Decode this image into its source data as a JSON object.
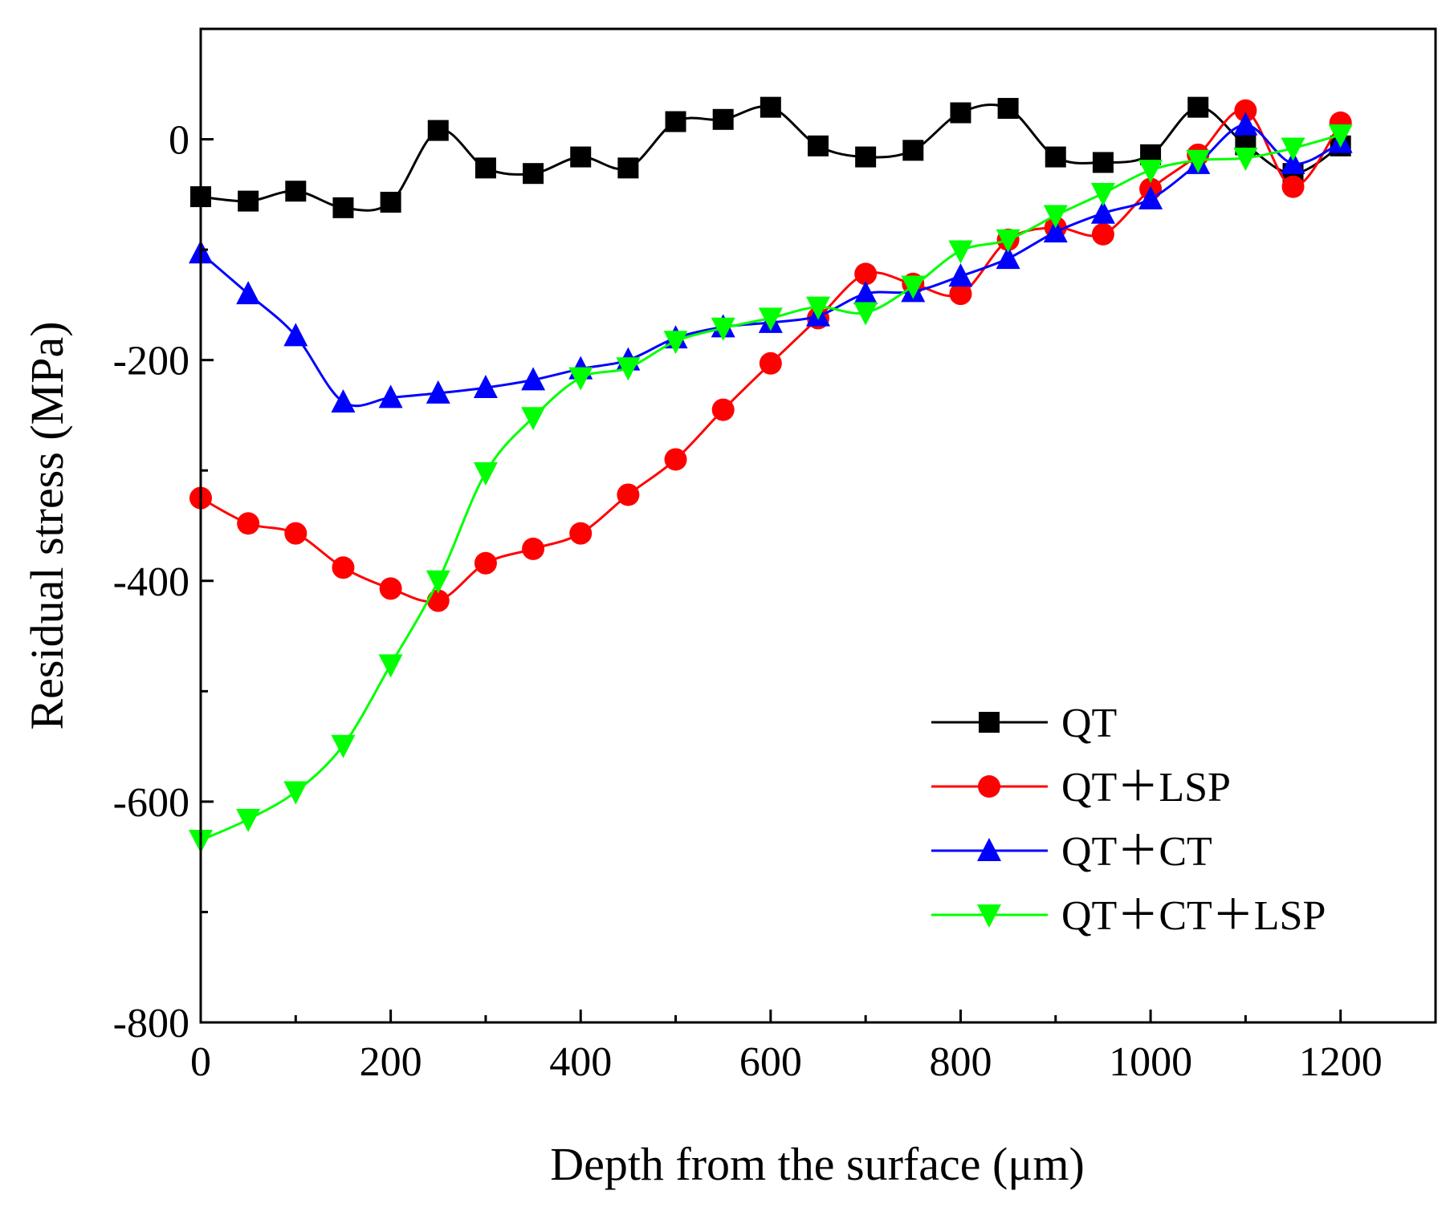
{
  "chart_data": {
    "type": "line",
    "title": "",
    "xlabel": "Depth from the surface (μm)",
    "ylabel": "Residual stress (MPa)",
    "xlim": [
      0,
      1300
    ],
    "ylim": [
      -800,
      100
    ],
    "xticks": [
      0,
      200,
      400,
      600,
      800,
      1000,
      1200
    ],
    "yticks": [
      -800,
      -600,
      -400,
      -200,
      0
    ],
    "xtick_labels": [
      "0",
      "200",
      "400",
      "600",
      "800",
      "1000",
      "1200"
    ],
    "ytick_labels": [
      "-800",
      "-600",
      "-400",
      "-200",
      "0"
    ],
    "grid": false,
    "legend_position": "bottom-right",
    "x": [
      0,
      50,
      100,
      150,
      200,
      250,
      300,
      350,
      400,
      450,
      500,
      550,
      600,
      650,
      700,
      750,
      800,
      850,
      900,
      950,
      1000,
      1050,
      1100,
      1150,
      1200
    ],
    "series": [
      {
        "name": "QT",
        "color": "#000000",
        "marker": "square",
        "values": [
          -52,
          -56,
          -47,
          -62,
          -57,
          8,
          -26,
          -31,
          -16,
          -26,
          16,
          18,
          29,
          -6,
          -16,
          -10,
          24,
          28,
          -16,
          -21,
          -14,
          29,
          -5,
          -31,
          -6
        ]
      },
      {
        "name": "QT＋LSP",
        "color": "#ff0000",
        "marker": "circle",
        "values": [
          -325,
          -348,
          -357,
          -388,
          -407,
          -418,
          -384,
          -371,
          -357,
          -322,
          -290,
          -245,
          -203,
          -162,
          -122,
          -131,
          -140,
          -91,
          -80,
          -86,
          -45,
          -14,
          26,
          -43,
          15
        ]
      },
      {
        "name": "QT＋CT",
        "color": "#0000ff",
        "marker": "triangle-up",
        "values": [
          -103,
          -140,
          -178,
          -238,
          -234,
          -230,
          -225,
          -218,
          -208,
          -200,
          -180,
          -170,
          -166,
          -160,
          -140,
          -138,
          -124,
          -108,
          -84,
          -67,
          -54,
          -22,
          13,
          -22,
          -3
        ]
      },
      {
        "name": "QT＋CT＋LSP",
        "color": "#00ff00",
        "marker": "triangle-down",
        "values": [
          -635,
          -616,
          -591,
          -549,
          -476,
          -400,
          -302,
          -252,
          -216,
          -207,
          -183,
          -171,
          -162,
          -152,
          -157,
          -133,
          -101,
          -91,
          -69,
          -49,
          -28,
          -19,
          -17,
          -8,
          4
        ]
      }
    ]
  }
}
